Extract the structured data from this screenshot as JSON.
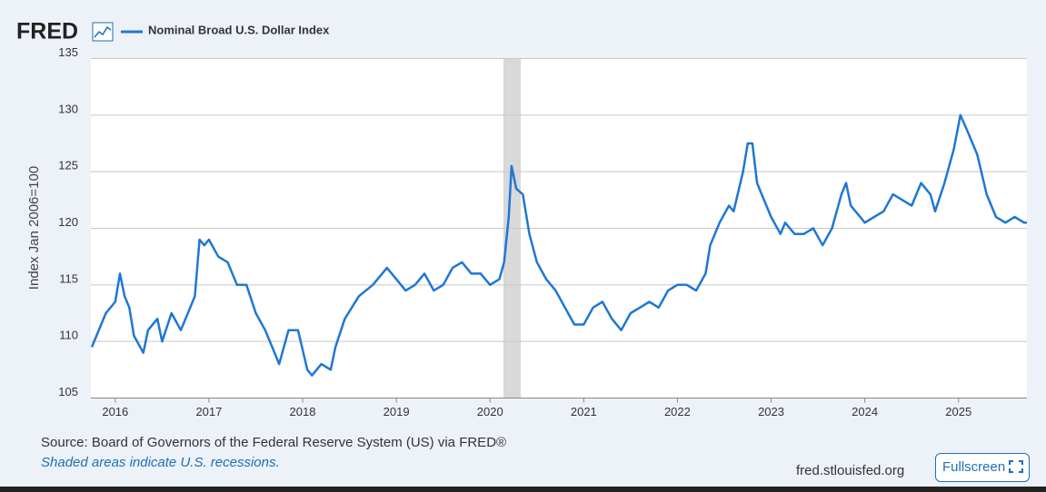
{
  "logo": "FRED",
  "source": "Source: Board of Governors of the Federal Reserve System (US) via FRED®",
  "note": "Shaded areas indicate U.S. recessions.",
  "site": "fred.stlouisfed.org",
  "button": "Fullscreen",
  "chart_data": {
    "type": "line",
    "y_label": "Index Jan 2006=100",
    "xlim": [
      2015.74,
      2025.73
    ],
    "xticks": [
      2016,
      2017,
      2018,
      2019,
      2020,
      2021,
      2022,
      2023,
      2024,
      2025
    ],
    "ylim": [
      105,
      135
    ],
    "yticks": [
      105,
      110,
      115,
      120,
      125,
      130,
      135
    ],
    "grid": true,
    "recessions": [
      [
        2020.15,
        2020.32
      ]
    ],
    "x": [
      2015.75,
      2015.8,
      2015.9,
      2016.0,
      2016.05,
      2016.1,
      2016.15,
      2016.2,
      2016.3,
      2016.35,
      2016.45,
      2016.5,
      2016.6,
      2016.7,
      2016.8,
      2016.85,
      2016.9,
      2016.95,
      2017.0,
      2017.1,
      2017.2,
      2017.3,
      2017.4,
      2017.5,
      2017.6,
      2017.7,
      2017.75,
      2017.85,
      2017.95,
      2018.05,
      2018.1,
      2018.2,
      2018.3,
      2018.35,
      2018.45,
      2018.6,
      2018.75,
      2018.9,
      2019.0,
      2019.1,
      2019.2,
      2019.3,
      2019.4,
      2019.5,
      2019.6,
      2019.7,
      2019.8,
      2019.9,
      2020.0,
      2020.1,
      2020.15,
      2020.2,
      2020.23,
      2020.28,
      2020.35,
      2020.42,
      2020.5,
      2020.6,
      2020.7,
      2020.8,
      2020.9,
      2021.0,
      2021.1,
      2021.2,
      2021.3,
      2021.4,
      2021.5,
      2021.6,
      2021.7,
      2021.8,
      2021.9,
      2022.0,
      2022.1,
      2022.2,
      2022.3,
      2022.35,
      2022.45,
      2022.55,
      2022.6,
      2022.7,
      2022.75,
      2022.8,
      2022.85,
      2022.9,
      2023.0,
      2023.1,
      2023.15,
      2023.25,
      2023.35,
      2023.45,
      2023.55,
      2023.65,
      2023.75,
      2023.8,
      2023.85,
      2023.95,
      2024.0,
      2024.1,
      2024.2,
      2024.3,
      2024.4,
      2024.5,
      2024.6,
      2024.7,
      2024.75,
      2024.85,
      2024.95,
      2025.02,
      2025.1,
      2025.2,
      2025.3,
      2025.4,
      2025.5,
      2025.6,
      2025.7,
      2025.73
    ],
    "series": [
      {
        "name": "Nominal Broad U.S. Dollar Index",
        "color": "#1f77d4",
        "values": [
          109.5,
          110.5,
          112.5,
          113.5,
          116,
          114,
          113,
          110.5,
          109,
          111,
          112,
          110,
          112.5,
          111,
          113,
          114,
          119,
          118.5,
          119,
          117.5,
          117,
          115,
          115,
          112.5,
          111,
          109,
          108,
          111,
          111,
          107.5,
          107,
          108,
          107.5,
          109.5,
          112,
          114,
          115,
          116.5,
          115.5,
          114.5,
          115,
          116,
          114.5,
          115,
          116.5,
          117,
          116,
          116,
          115,
          115.5,
          117,
          121,
          125.5,
          123.5,
          123,
          119.5,
          117,
          115.5,
          114.5,
          113,
          111.5,
          111.5,
          113,
          113.5,
          112,
          111,
          112.5,
          113,
          113.5,
          113,
          114.5,
          115,
          115,
          114.5,
          116,
          118.5,
          120.5,
          122,
          121.5,
          125,
          127.5,
          127.5,
          124,
          123,
          121,
          119.5,
          120.5,
          119.5,
          119.5,
          120,
          118.5,
          120,
          123,
          124,
          122,
          121,
          120.5,
          121,
          121.5,
          123,
          122.5,
          122,
          124,
          123,
          121.5,
          124,
          127,
          130,
          128.5,
          126.5,
          123,
          121,
          120.5,
          121,
          120.5,
          120.5
        ]
      }
    ]
  }
}
